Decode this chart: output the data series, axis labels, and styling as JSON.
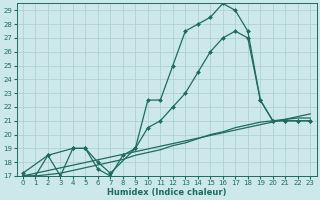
{
  "xlabel": "Humidex (Indice chaleur)",
  "bg_color": "#cde8ea",
  "grid_color": "#aacdd0",
  "line_color": "#1e6b5e",
  "xlim": [
    -0.5,
    23.5
  ],
  "ylim": [
    17,
    29.5
  ],
  "yticks": [
    17,
    18,
    19,
    20,
    21,
    22,
    23,
    24,
    25,
    26,
    27,
    28,
    29
  ],
  "xticks": [
    0,
    1,
    2,
    3,
    4,
    5,
    6,
    7,
    8,
    9,
    10,
    11,
    12,
    13,
    14,
    15,
    16,
    17,
    18,
    19,
    20,
    21,
    22,
    23
  ],
  "series": [
    {
      "x": [
        0,
        1,
        2,
        3,
        4,
        5,
        6,
        7,
        8,
        9,
        10,
        11,
        12,
        13,
        14,
        15,
        16,
        17,
        18,
        19,
        20,
        21,
        22,
        23
      ],
      "y": [
        17.0,
        17.0,
        18.5,
        17.0,
        19.0,
        19.0,
        17.5,
        17.0,
        18.5,
        19.0,
        22.5,
        22.5,
        25.0,
        27.5,
        28.0,
        28.5,
        29.5,
        29.0,
        27.5,
        22.5,
        21.0,
        21.0,
        21.0,
        21.0
      ],
      "marker": "D",
      "markersize": 2.0,
      "linewidth": 0.9
    },
    {
      "x": [
        0,
        2,
        4,
        5,
        6,
        7,
        9,
        10,
        11,
        12,
        13,
        14,
        15,
        16,
        17,
        18,
        19,
        20,
        21,
        22,
        23
      ],
      "y": [
        17.2,
        18.5,
        19.0,
        19.0,
        18.0,
        17.2,
        19.0,
        20.5,
        21.0,
        22.0,
        23.0,
        24.5,
        26.0,
        27.0,
        27.5,
        27.0,
        22.5,
        21.0,
        21.0,
        21.0,
        21.0
      ],
      "marker": "D",
      "markersize": 2.0,
      "linewidth": 0.9
    },
    {
      "x": [
        0,
        1,
        2,
        3,
        4,
        5,
        6,
        7,
        8,
        9,
        10,
        11,
        12,
        13,
        14,
        15,
        16,
        17,
        18,
        19,
        20,
        21,
        22,
        23
      ],
      "y": [
        17.0,
        17.0,
        17.1,
        17.2,
        17.4,
        17.6,
        17.8,
        18.0,
        18.2,
        18.5,
        18.7,
        18.9,
        19.2,
        19.4,
        19.7,
        20.0,
        20.2,
        20.5,
        20.7,
        20.9,
        21.0,
        21.1,
        21.2,
        21.2
      ],
      "marker": null,
      "markersize": 0,
      "linewidth": 0.9
    },
    {
      "x": [
        0,
        23
      ],
      "y": [
        17.0,
        21.5
      ],
      "marker": null,
      "markersize": 0,
      "linewidth": 0.9
    }
  ]
}
